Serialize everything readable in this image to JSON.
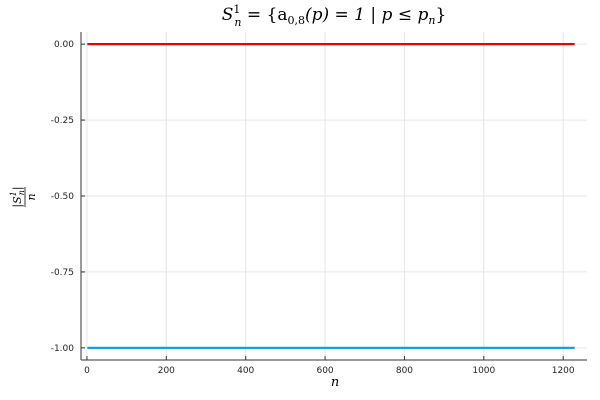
{
  "chart_data": {
    "type": "line",
    "title": "S_n^1 = {a_{0,8}(p) = 1 | p ≤ p_n}",
    "title_parts": {
      "s_symbol": "S",
      "superscript": "1",
      "subscript": "n",
      "body": " = {a",
      "body_sub": "0,8",
      "body_rest": "(p) = 1 | p ≤ p",
      "tail_sub": "n",
      "tail": "}"
    },
    "xlabel": "n",
    "ylabel": "|S_n^1| / n",
    "ylabel_parts": {
      "numerator": "|S",
      "numerator_sup": "1",
      "numerator_sub": "n",
      "numerator_end": "|",
      "denominator": "n"
    },
    "xlim": [
      -15,
      1260
    ],
    "ylim": [
      -1.04,
      0.04
    ],
    "xticks": [
      0,
      200,
      400,
      600,
      800,
      1000,
      1200
    ],
    "xtick_labels": [
      "0",
      "200",
      "400",
      "600",
      "800",
      "1000",
      "1200"
    ],
    "yticks": [
      0.0,
      -0.25,
      -0.5,
      -0.75,
      -1.0
    ],
    "ytick_labels": [
      "0.00",
      "-0.25",
      "-0.50",
      "-0.75",
      "-1.00"
    ],
    "grid": true,
    "legend": "none",
    "series": [
      {
        "x": [
          1,
          1229
        ],
        "y": [
          0.0,
          0.0
        ],
        "color": "#e8000b"
      },
      {
        "x": [
          1,
          1229
        ],
        "y": [
          -1.0,
          -1.0
        ],
        "color": "#1a9ee0"
      }
    ],
    "colors": {
      "axis": "#333333",
      "grid": "#e6e6e6"
    }
  }
}
